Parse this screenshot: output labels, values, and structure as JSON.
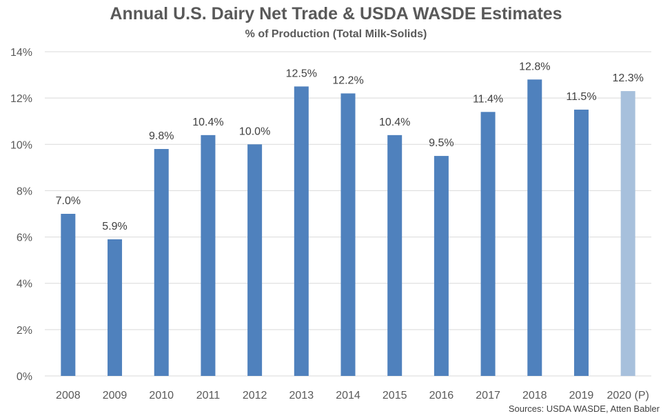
{
  "chart_data": {
    "type": "bar",
    "title": "Annual U.S. Dairy Net Trade & USDA WASDE Estimates",
    "subtitle": "% of Production  (Total Milk-Solids)",
    "xlabel": "",
    "ylabel": "",
    "categories": [
      "2008",
      "2009",
      "2010",
      "2011",
      "2012",
      "2013",
      "2014",
      "2015",
      "2016",
      "2017",
      "2018",
      "2019",
      "2020 (P)"
    ],
    "values": [
      7.0,
      5.9,
      9.8,
      10.4,
      10.0,
      12.5,
      12.2,
      10.4,
      9.5,
      11.4,
      12.8,
      11.5,
      12.3
    ],
    "data_labels": [
      "7.0%",
      "5.9%",
      "9.8%",
      "10.4%",
      "10.0%",
      "12.5%",
      "12.2%",
      "10.4%",
      "9.5%",
      "11.4%",
      "12.8%",
      "11.5%",
      "12.3%"
    ],
    "ylim": [
      0,
      14
    ],
    "yticks": [
      0,
      2,
      4,
      6,
      8,
      10,
      12,
      14
    ],
    "ytick_labels": [
      "0%",
      "2%",
      "4%",
      "6%",
      "8%",
      "10%",
      "12%",
      "14%"
    ],
    "grid": true,
    "colors": {
      "actual": "#4f81bd",
      "projected": "#a7c0dc",
      "gridline": "#d9d9d9"
    },
    "projected_index": 12,
    "source": "Sources: USDA WASDE, Atten Babler"
  }
}
